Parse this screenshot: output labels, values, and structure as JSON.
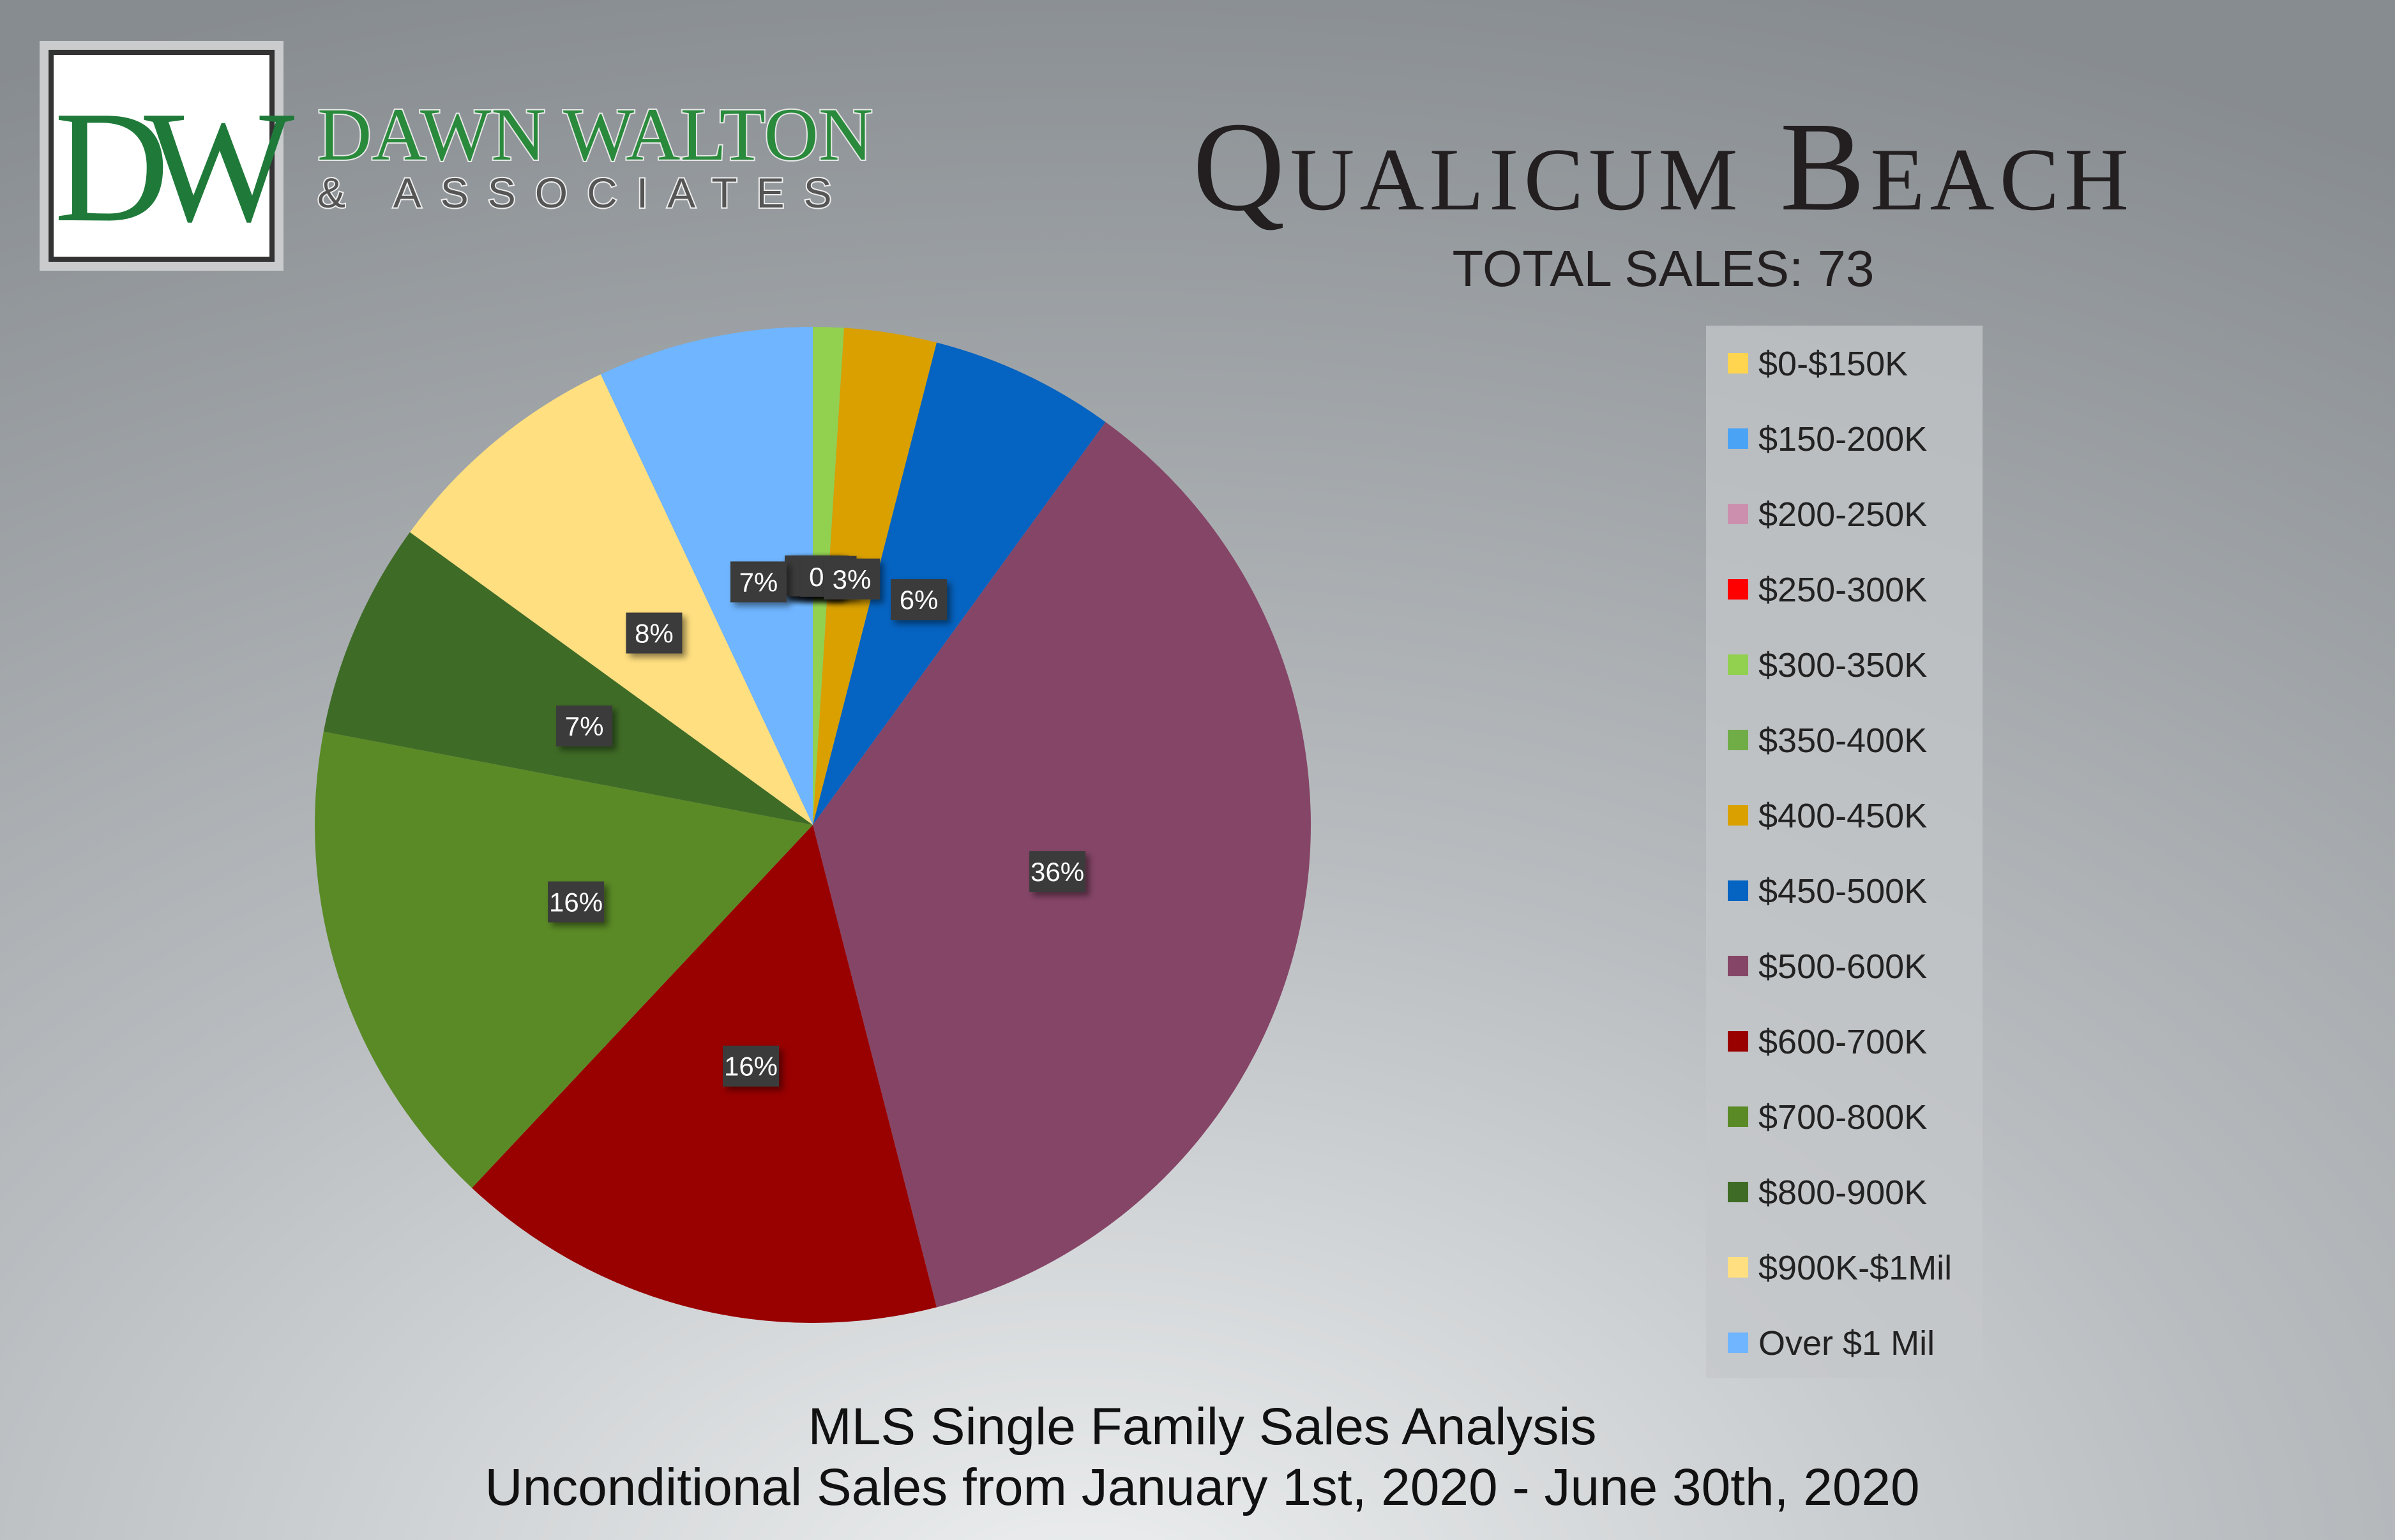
{
  "logo": {
    "initials": "DW",
    "name": "DAWN WALTON",
    "tagline": "& ASSOCIATES"
  },
  "chart_data": {
    "type": "pie",
    "title": "Qualicum Beach",
    "subtitle": "TOTAL SALES: 73",
    "caption": [
      "MLS Single Family Sales Analysis",
      "Unconditional Sales from January 1st, 2020 - June 30th, 2020"
    ],
    "categories": [
      "$0-$150K",
      "$150-200K",
      "$200-250K",
      "$250-300K",
      "$300-350K",
      "$350-400K",
      "$400-450K",
      "$450-500K",
      "$500-600K",
      "$600-700K",
      "$700-800K",
      "$800-900K",
      "$900K-$1Mil",
      "Over $1 Mil"
    ],
    "values": [
      0,
      0,
      0,
      0,
      1,
      0,
      3,
      6,
      36,
      16,
      16,
      7,
      8,
      7
    ],
    "value_labels": [
      "0%",
      "0%",
      "0%",
      "0%",
      "1%",
      "0%",
      "3%",
      "6%",
      "36%",
      "16%",
      "16%",
      "7%",
      "8%",
      "7%"
    ],
    "colors": [
      "#ffd54f",
      "#4aa3f5",
      "#cc8fae",
      "#ff0000",
      "#92d050",
      "#70ad47",
      "#d9a000",
      "#0563c1",
      "#854567",
      "#990000",
      "#5a8a26",
      "#3e6b25",
      "#ffdf80",
      "#6fb5ff"
    ],
    "legend": "right"
  }
}
